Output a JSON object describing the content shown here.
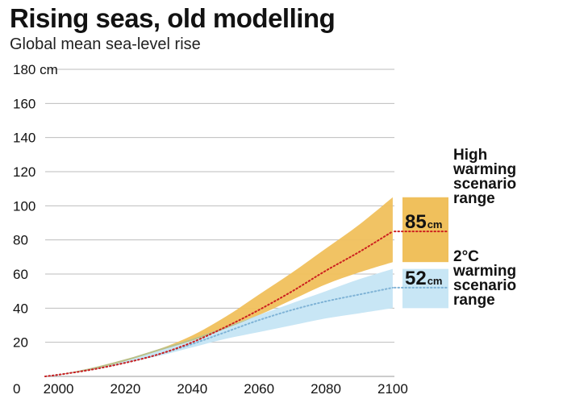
{
  "chart_data": {
    "type": "area",
    "title": "Rising seas, old modelling",
    "subtitle": "Global mean sea-level rise",
    "ylabel_unit": "cm",
    "ylim": [
      0,
      180
    ],
    "yticks": [
      0,
      20,
      40,
      60,
      80,
      100,
      120,
      140,
      160,
      180
    ],
    "xlim": [
      1996,
      2103
    ],
    "xticks": [
      2000,
      2020,
      2040,
      2060,
      2080,
      2100
    ],
    "colors": {
      "high_band": "#f0c05c",
      "low_band": "#c8e6f5",
      "overlap": "#b8b873",
      "high_line": "#cc1f1f",
      "low_line": "#7fb3d6",
      "grid": "#bdbdbd"
    },
    "series": [
      {
        "name": "High warming scenario",
        "x": [
          1996,
          2000,
          2010,
          2020,
          2030,
          2040,
          2050,
          2060,
          2070,
          2080,
          2090,
          2100
        ],
        "median": [
          0,
          1,
          4,
          8,
          13,
          20,
          29,
          39,
          50,
          62,
          73,
          85
        ],
        "lower": [
          0,
          1,
          4,
          9,
          15,
          21,
          28,
          36,
          45,
          54,
          61,
          67
        ],
        "upper": [
          0,
          1,
          5,
          10,
          16,
          24,
          35,
          48,
          61,
          75,
          89,
          105
        ]
      },
      {
        "name": "2°C warming scenario",
        "x": [
          1996,
          2000,
          2010,
          2020,
          2030,
          2040,
          2050,
          2060,
          2070,
          2080,
          2090,
          2100
        ],
        "median": [
          0,
          1,
          4,
          8,
          13,
          19,
          26,
          33,
          39,
          44,
          48,
          52
        ],
        "lower": [
          0,
          1,
          4,
          8,
          12,
          17,
          22,
          26,
          30,
          34,
          37,
          40
        ],
        "upper": [
          0,
          1,
          5,
          10,
          16,
          22,
          29,
          36,
          43,
          50,
          57,
          63
        ]
      }
    ],
    "side_bars": [
      {
        "name": "High warming scenario range",
        "low": 67,
        "high": 105,
        "median": 85,
        "value_label": "85",
        "unit": "cm",
        "label_lines": [
          "High",
          "warming",
          "scenario",
          "range"
        ]
      },
      {
        "name": "2°C warming scenario range",
        "low": 40,
        "high": 63,
        "median": 52,
        "value_label": "52",
        "unit": "cm",
        "label_lines": [
          "2°C",
          "warming",
          "scenario",
          "range"
        ]
      }
    ]
  }
}
